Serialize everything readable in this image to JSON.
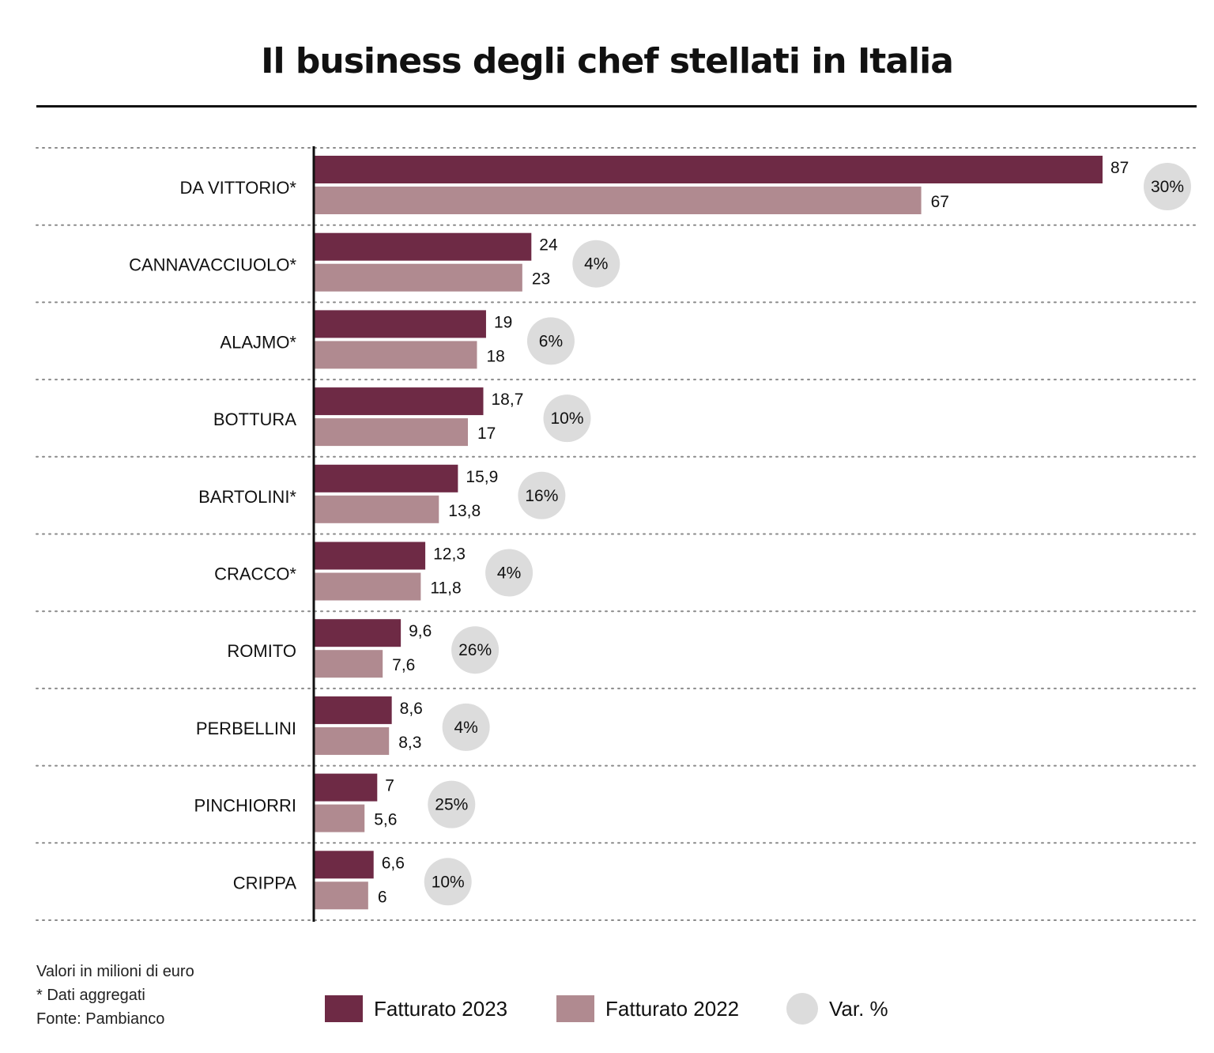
{
  "title": "Il business degli chef stellati in Italia",
  "colors": {
    "2023": "#6e2a45",
    "2022": "#b08a90",
    "var": "#dcdcdc"
  },
  "chart_data": {
    "type": "bar",
    "orientation": "horizontal",
    "categories": [
      "DA VITTORIO*",
      "CANNAVACCIUOLO*",
      "ALAJMO*",
      "BOTTURA",
      "BARTOLINI*",
      "CRACCO*",
      "ROMITO",
      "PERBELLINI",
      "PINCHIORRI",
      "CRIPPA"
    ],
    "series": [
      {
        "name": "Fatturato 2023",
        "values": [
          87,
          24,
          19,
          18.7,
          15.9,
          12.3,
          9.6,
          8.6,
          7,
          6.6
        ],
        "labels": [
          "87",
          "24",
          "19",
          "18,7",
          "15,9",
          "12,3",
          "9,6",
          "8,6",
          "7",
          "6,6"
        ]
      },
      {
        "name": "Fatturato 2022",
        "values": [
          67,
          23,
          18,
          17,
          13.8,
          11.8,
          7.6,
          8.3,
          5.6,
          6
        ],
        "labels": [
          "67",
          "23",
          "18",
          "17",
          "13,8",
          "11,8",
          "7,6",
          "8,3",
          "5,6",
          "6"
        ]
      }
    ],
    "variation": {
      "name": "Var. %",
      "labels": [
        "30%",
        "4%",
        "6%",
        "10%",
        "16%",
        "4%",
        "26%",
        "4%",
        "25%",
        "10%"
      ]
    },
    "xlim": [
      0,
      87
    ],
    "legend_position": "bottom"
  },
  "notes": [
    "Valori in milioni di euro",
    "* Dati aggregati",
    "Fonte: Pambianco"
  ],
  "legend": {
    "l2023": "Fatturato 2023",
    "l2022": "Fatturato 2022",
    "lvar": "Var. %"
  }
}
